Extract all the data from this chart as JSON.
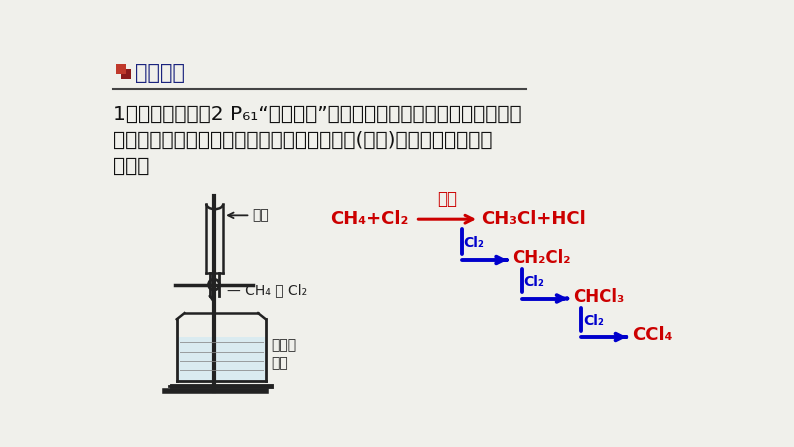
{
  "bg_color": "#f0f0eb",
  "title_text": "教材链接",
  "title_color": "#1a237e",
  "line1": "1．依据教材必修2 P₆₁“科学探究”：取一支硬质大试管，通过排饱和食",
  "line2": "盐水的方法先后收集半试管甲烷和半试管氯气(如图)，探究并回答下列",
  "line3": "问题：",
  "text_color": "#111111",
  "red": "#cc0000",
  "blue": "#0000cc",
  "dark": "#222222"
}
